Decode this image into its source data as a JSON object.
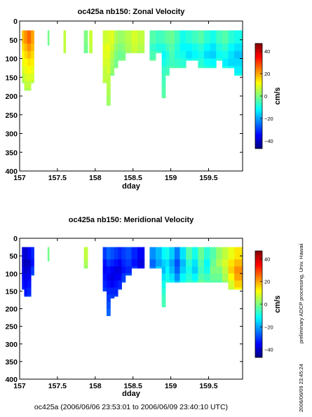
{
  "footer": "oc425a (2006/06/06 23:53:01 to 2006/06/09 23:40:10 UTC)",
  "side_text": {
    "left": "preliminary ADCP processing,   Univ. Hawaii",
    "right": "2006/06/09 23:45:24"
  },
  "colorscale": {
    "stops": [
      "#00007f",
      "#0000ff",
      "#007fff",
      "#00ffff",
      "#7fff7f",
      "#ffff00",
      "#ff7f00",
      "#ff0000",
      "#7f0000"
    ],
    "range": [
      -47,
      47
    ]
  },
  "chart_data": [
    {
      "type": "heatmap",
      "title": "oc425a nb150: Zonal Velocity",
      "xlabel": "dday",
      "ylabel": "",
      "xlim": [
        157.0,
        159.95
      ],
      "ylim": [
        400,
        0
      ],
      "x_ticks": [
        157,
        157.5,
        158,
        158.5,
        159,
        159.5
      ],
      "x_tick_labels": [
        "157",
        "157.5",
        "158",
        "158.5",
        "159",
        "159.5"
      ],
      "y_ticks": [
        0,
        50,
        100,
        150,
        200,
        250,
        300,
        350,
        400
      ],
      "y_tick_labels": [
        "0",
        "50",
        "100",
        "150",
        "200",
        "250",
        "300",
        "350",
        "400"
      ],
      "colorbar": {
        "label": "cm/s",
        "range": [
          -47,
          47
        ],
        "ticks": [
          40,
          20,
          0,
          -20,
          -40
        ],
        "tick_labels": [
          "40",
          "20",
          "0",
          "−20",
          "−40"
        ]
      },
      "grid": false,
      "columns": [
        {
          "x0": 157.03,
          "x1": 157.06,
          "depth": 130,
          "values": [
            18,
            15,
            12,
            10,
            8,
            5,
            3
          ]
        },
        {
          "x0": 157.06,
          "x1": 157.1,
          "depth": 155,
          "values": [
            22,
            18,
            15,
            12,
            10,
            8,
            6,
            4
          ]
        },
        {
          "x0": 157.1,
          "x1": 157.15,
          "depth": 165,
          "values": [
            26,
            22,
            18,
            14,
            12,
            9,
            6,
            4
          ]
        },
        {
          "x0": 157.15,
          "x1": 157.19,
          "depth": 140,
          "values": [
            20,
            18,
            15,
            13,
            10,
            8,
            5
          ]
        },
        {
          "x0": 157.37,
          "x1": 157.39,
          "depth": 40,
          "values": [
            -1,
            -2
          ]
        },
        {
          "x0": 157.58,
          "x1": 157.61,
          "depth": 75,
          "values": [
            6,
            6,
            5
          ]
        },
        {
          "x0": 157.85,
          "x1": 157.9,
          "depth": 65,
          "values": [
            0,
            -1,
            -2
          ]
        },
        {
          "x0": 157.92,
          "x1": 157.96,
          "depth": 70,
          "values": [
            7,
            6,
            5
          ]
        },
        {
          "x0": 158.1,
          "x1": 158.15,
          "depth": 160,
          "values": [
            7,
            9,
            9,
            8,
            6,
            6,
            5
          ]
        },
        {
          "x0": 158.15,
          "x1": 158.2,
          "depth": 220,
          "values": [
            8,
            10,
            9,
            8,
            8,
            6,
            5,
            4,
            3,
            2
          ]
        },
        {
          "x0": 158.2,
          "x1": 158.25,
          "depth": 145,
          "values": [
            9,
            7,
            5,
            3,
            2,
            0
          ]
        },
        {
          "x0": 158.25,
          "x1": 158.3,
          "depth": 115,
          "values": [
            4,
            2,
            0,
            -1,
            0
          ]
        },
        {
          "x0": 158.3,
          "x1": 158.35,
          "depth": 90,
          "values": [
            2,
            0,
            -2,
            -1
          ]
        },
        {
          "x0": 158.35,
          "x1": 158.4,
          "depth": 85,
          "values": [
            3,
            1,
            -1,
            0
          ]
        },
        {
          "x0": 158.4,
          "x1": 158.48,
          "depth": 65,
          "values": [
            5,
            4,
            3
          ]
        },
        {
          "x0": 158.48,
          "x1": 158.56,
          "depth": 70,
          "values": [
            8,
            7,
            6
          ]
        },
        {
          "x0": 158.56,
          "x1": 158.65,
          "depth": 80,
          "values": [
            6,
            5,
            4
          ]
        },
        {
          "x0": 158.72,
          "x1": 158.8,
          "depth": 90,
          "values": [
            -4,
            -7,
            -5,
            -3
          ]
        },
        {
          "x0": 158.8,
          "x1": 158.88,
          "depth": 75,
          "values": [
            -6,
            -9,
            -6
          ]
        },
        {
          "x0": 158.88,
          "x1": 158.93,
          "depth": 195,
          "values": [
            -5,
            -9,
            -12,
            -10,
            -7,
            -6,
            -5,
            -4,
            -3
          ]
        },
        {
          "x0": 158.93,
          "x1": 158.98,
          "depth": 130,
          "values": [
            -3,
            -6,
            -9,
            -8,
            -6,
            -4
          ]
        },
        {
          "x0": 158.98,
          "x1": 159.05,
          "depth": 105,
          "values": [
            -2,
            -4,
            -5,
            -6,
            -4
          ]
        },
        {
          "x0": 159.05,
          "x1": 159.12,
          "depth": 105,
          "values": [
            -6,
            -8,
            -9,
            -7,
            -5
          ]
        },
        {
          "x0": 159.12,
          "x1": 159.2,
          "depth": 115,
          "values": [
            -10,
            -12,
            -10,
            -8,
            -6
          ]
        },
        {
          "x0": 159.2,
          "x1": 159.28,
          "depth": 95,
          "values": [
            -8,
            -12,
            -14,
            -10
          ]
        },
        {
          "x0": 159.28,
          "x1": 159.36,
          "depth": 90,
          "values": [
            -6,
            -10,
            -12,
            -9
          ]
        },
        {
          "x0": 159.36,
          "x1": 159.44,
          "depth": 110,
          "values": [
            -4,
            -8,
            -10,
            -8,
            -6
          ]
        },
        {
          "x0": 159.44,
          "x1": 159.52,
          "depth": 105,
          "values": [
            -8,
            -12,
            -15,
            -11,
            -8
          ]
        },
        {
          "x0": 159.52,
          "x1": 159.6,
          "depth": 110,
          "values": [
            -10,
            -14,
            -16,
            -12,
            -9
          ]
        },
        {
          "x0": 159.6,
          "x1": 159.68,
          "depth": 95,
          "values": [
            -6,
            -9,
            -11,
            -8
          ]
        },
        {
          "x0": 159.68,
          "x1": 159.76,
          "depth": 120,
          "values": [
            -4,
            -7,
            -10,
            -13,
            -9
          ]
        },
        {
          "x0": 159.76,
          "x1": 159.84,
          "depth": 110,
          "values": [
            -8,
            -12,
            -14,
            -15,
            -11
          ]
        },
        {
          "x0": 159.84,
          "x1": 159.95,
          "depth": 135,
          "values": [
            -10,
            -14,
            -17,
            -15,
            -13,
            -10
          ]
        }
      ]
    },
    {
      "type": "heatmap",
      "title": "oc425a nb150: Meridional Velocity",
      "xlabel": "dday",
      "ylabel": "",
      "xlim": [
        157.0,
        159.95
      ],
      "ylim": [
        400,
        0
      ],
      "x_ticks": [
        157,
        157.5,
        158,
        158.5,
        159,
        159.5
      ],
      "x_tick_labels": [
        "157",
        "157.5",
        "158",
        "158.5",
        "159",
        "159.5"
      ],
      "y_ticks": [
        0,
        50,
        100,
        150,
        200,
        250,
        300,
        350,
        400
      ],
      "y_tick_labels": [
        "0",
        "50",
        "100",
        "150",
        "200",
        "250",
        "300",
        "350",
        "400"
      ],
      "colorbar": {
        "label": "cm/s",
        "range": [
          -47,
          47
        ],
        "ticks": [
          40,
          20,
          0,
          -20,
          -40
        ],
        "tick_labels": [
          "40",
          "20",
          "0",
          "−20",
          "−40"
        ]
      },
      "grid": false,
      "columns": [
        {
          "x0": 157.03,
          "x1": 157.06,
          "depth": 130,
          "values": [
            -38,
            -40,
            -38,
            -36,
            -34,
            -32
          ]
        },
        {
          "x0": 157.06,
          "x1": 157.1,
          "depth": 155,
          "values": [
            -40,
            -42,
            -40,
            -38,
            -36,
            -34,
            -32
          ]
        },
        {
          "x0": 157.1,
          "x1": 157.15,
          "depth": 165,
          "values": [
            -36,
            -40,
            -38,
            -36,
            -34,
            -32,
            -30
          ]
        },
        {
          "x0": 157.15,
          "x1": 157.19,
          "depth": 95,
          "values": [
            -32,
            -34,
            -30,
            -28
          ]
        },
        {
          "x0": 157.37,
          "x1": 157.39,
          "depth": 40,
          "values": [
            -1,
            -2
          ]
        },
        {
          "x0": 157.85,
          "x1": 157.9,
          "depth": 70,
          "values": [
            6,
            4,
            2
          ]
        },
        {
          "x0": 158.1,
          "x1": 158.15,
          "depth": 150,
          "values": [
            -30,
            -34,
            -36,
            -34,
            -32,
            -30
          ]
        },
        {
          "x0": 158.15,
          "x1": 158.2,
          "depth": 220,
          "values": [
            -26,
            -30,
            -34,
            -36,
            -34,
            -32,
            -30,
            -28,
            -26
          ]
        },
        {
          "x0": 158.2,
          "x1": 158.25,
          "depth": 170,
          "values": [
            -28,
            -32,
            -36,
            -38,
            -36,
            -32,
            -30
          ]
        },
        {
          "x0": 158.25,
          "x1": 158.3,
          "depth": 160,
          "values": [
            -30,
            -34,
            -38,
            -36,
            -34,
            -32,
            -30
          ]
        },
        {
          "x0": 158.3,
          "x1": 158.35,
          "depth": 140,
          "values": [
            -32,
            -36,
            -38,
            -36,
            -32,
            -30
          ]
        },
        {
          "x0": 158.35,
          "x1": 158.4,
          "depth": 120,
          "values": [
            -30,
            -32,
            -34,
            -30,
            -28
          ]
        },
        {
          "x0": 158.4,
          "x1": 158.48,
          "depth": 100,
          "values": [
            -28,
            -30,
            -32,
            -28
          ]
        },
        {
          "x0": 158.48,
          "x1": 158.56,
          "depth": 80,
          "values": [
            -32,
            -34,
            -30
          ]
        },
        {
          "x0": 158.56,
          "x1": 158.65,
          "depth": 70,
          "values": [
            -36,
            -38,
            -36
          ]
        },
        {
          "x0": 158.72,
          "x1": 158.8,
          "depth": 65,
          "values": [
            -22,
            -26,
            -24
          ]
        },
        {
          "x0": 158.8,
          "x1": 158.88,
          "depth": 75,
          "values": [
            -18,
            -20,
            -16
          ]
        },
        {
          "x0": 158.88,
          "x1": 158.93,
          "depth": 195,
          "values": [
            -12,
            -16,
            -18,
            -14,
            -10,
            -8,
            -6,
            -5
          ]
        },
        {
          "x0": 158.93,
          "x1": 158.98,
          "depth": 120,
          "values": [
            -10,
            -14,
            -12,
            -10,
            -8
          ]
        },
        {
          "x0": 158.98,
          "x1": 159.05,
          "depth": 110,
          "values": [
            -16,
            -20,
            -18,
            -14,
            -12
          ]
        },
        {
          "x0": 159.05,
          "x1": 159.12,
          "depth": 120,
          "values": [
            -24,
            -28,
            -26,
            -22,
            -18
          ]
        },
        {
          "x0": 159.12,
          "x1": 159.2,
          "depth": 115,
          "values": [
            -14,
            -18,
            -16,
            -12,
            -10
          ]
        },
        {
          "x0": 159.2,
          "x1": 159.28,
          "depth": 110,
          "values": [
            -4,
            -8,
            -10,
            -8,
            -6
          ]
        },
        {
          "x0": 159.28,
          "x1": 159.36,
          "depth": 120,
          "values": [
            -10,
            -14,
            -16,
            -12,
            -8
          ]
        },
        {
          "x0": 159.36,
          "x1": 159.44,
          "depth": 105,
          "values": [
            -2,
            -4,
            -6,
            -4,
            -2
          ]
        },
        {
          "x0": 159.44,
          "x1": 159.52,
          "depth": 110,
          "values": [
            -8,
            -12,
            -10,
            -6,
            -4
          ]
        },
        {
          "x0": 159.52,
          "x1": 159.6,
          "depth": 120,
          "values": [
            -4,
            -2,
            0,
            -2,
            -4
          ]
        },
        {
          "x0": 159.6,
          "x1": 159.68,
          "depth": 115,
          "values": [
            2,
            4,
            0,
            -2,
            -4
          ]
        },
        {
          "x0": 159.68,
          "x1": 159.76,
          "depth": 125,
          "values": [
            6,
            8,
            6,
            4,
            2
          ]
        },
        {
          "x0": 159.76,
          "x1": 159.84,
          "depth": 130,
          "values": [
            10,
            14,
            16,
            12,
            8,
            6
          ]
        },
        {
          "x0": 159.84,
          "x1": 159.95,
          "depth": 135,
          "values": [
            14,
            18,
            22,
            20,
            16,
            12
          ]
        }
      ]
    }
  ]
}
